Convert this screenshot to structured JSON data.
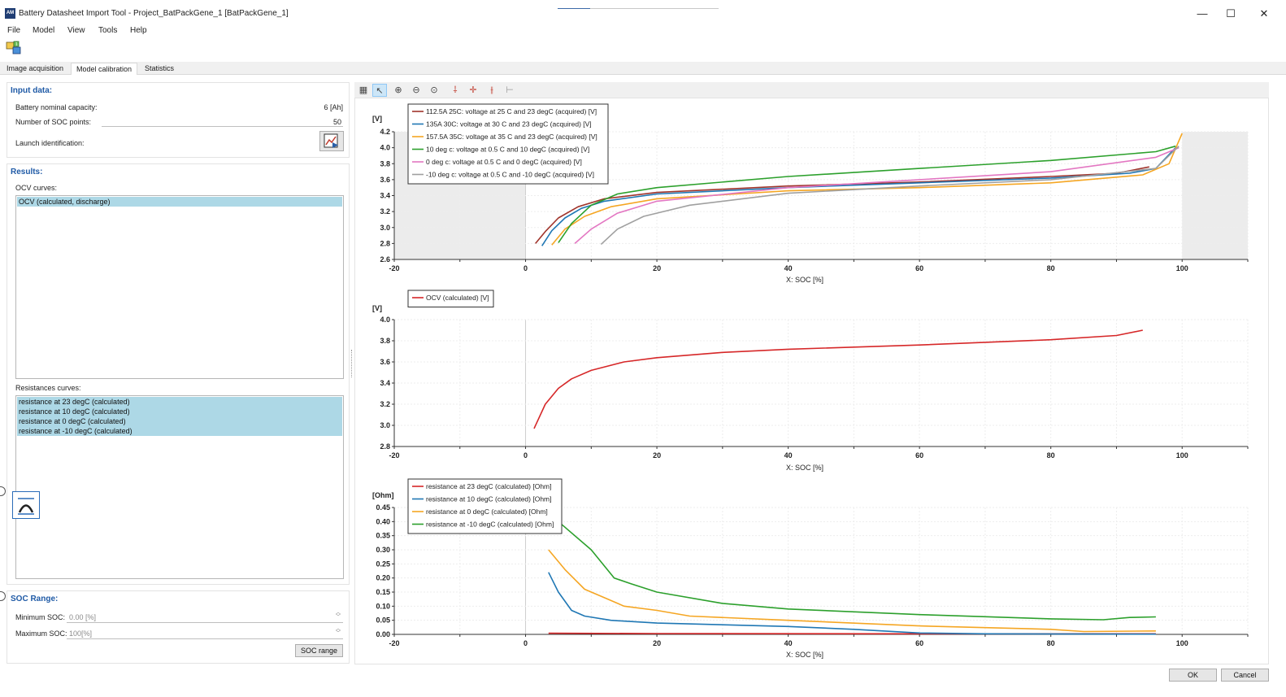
{
  "window": {
    "title": "Battery Datasheet Import Tool - Project_BatPackGene_1 [BatPackGene_1]",
    "app_icon_text": "AM",
    "minimize": "—",
    "maximize": "☐",
    "close": "✕"
  },
  "menu": [
    "File",
    "Model",
    "View",
    "Tools",
    "Help"
  ],
  "tabs": [
    "Image acquisition",
    "Model calibration",
    "Statistics"
  ],
  "active_tab": "Model calibration",
  "input_data": {
    "title": "Input data:",
    "capacity_label": "Battery nominal capacity:",
    "capacity_value": "6 [Ah]",
    "soc_points_label": "Number of SOC points:",
    "soc_points_value": "50",
    "launch_label": "Launch identification:"
  },
  "results": {
    "title": "Results:",
    "ocv_label": "OCV curves:",
    "ocv_items": [
      "OCV (calculated, discharge)"
    ],
    "res_label": "Resistances curves:",
    "res_items": [
      "resistance at 23 degC (calculated)",
      "resistance at 10 degC (calculated)",
      "resistance at 0 degC (calculated)",
      "resistance at -10 degC (calculated)"
    ]
  },
  "soc_range": {
    "title": "SOC Range:",
    "min_label": "Minimum SOC:",
    "min_value": "0.00 [%]",
    "max_label": "Maximum SOC:",
    "max_value": "100[%]",
    "button": "SOC range"
  },
  "buttons": {
    "ok": "OK",
    "cancel": "Cancel"
  },
  "colors": {
    "red": "#d62728",
    "blue": "#1f77b4",
    "orange": "#f5a623",
    "green": "#2ca02c",
    "pink": "#e377c2",
    "gray": "#a0a0a0",
    "selection": "#add8e6",
    "section_title": "#1f5aa6"
  },
  "icons": {
    "toolbar": [
      "table-icon",
      "pointer-icon",
      "zoom-in-icon",
      "zoom-out-icon",
      "zoom-reset-icon",
      "vertical-cursor-icon",
      "crosshair-icon",
      "double-cursor-icon",
      "marker-icon"
    ]
  },
  "chart_data": [
    {
      "type": "line",
      "ylabel": "[V]",
      "xlabel": "X: SOC [%]",
      "xlim": [
        -20,
        110
      ],
      "ylim": [
        2.6,
        4.2
      ],
      "xticks": [
        -20,
        0,
        20,
        40,
        60,
        80,
        100
      ],
      "yticks": [
        2.6,
        2.8,
        3.0,
        3.2,
        3.4,
        3.6,
        3.8,
        4.0,
        4.2
      ],
      "shaded_ranges": [
        [
          -20,
          0
        ],
        [
          100,
          110
        ]
      ],
      "grid": true,
      "legend_position": "top-left",
      "series": [
        {
          "name": "112.5A 25C: voltage at 25 C and 23 degC (acquired) [V]",
          "color": "#a0342b",
          "points": [
            [
              1.5,
              2.8
            ],
            [
              3,
              2.95
            ],
            [
              5,
              3.12
            ],
            [
              8,
              3.26
            ],
            [
              12,
              3.36
            ],
            [
              20,
              3.44
            ],
            [
              40,
              3.52
            ],
            [
              60,
              3.57
            ],
            [
              80,
              3.64
            ],
            [
              90,
              3.68
            ],
            [
              95,
              3.76
            ]
          ]
        },
        {
          "name": "135A 30C: voltage at 30 C and 23 degC (acquired) [V]",
          "color": "#1f77b4",
          "points": [
            [
              2.5,
              2.77
            ],
            [
              4,
              2.96
            ],
            [
              6,
              3.12
            ],
            [
              8.5,
              3.24
            ],
            [
              12,
              3.33
            ],
            [
              20,
              3.42
            ],
            [
              40,
              3.5
            ],
            [
              60,
              3.56
            ],
            [
              80,
              3.62
            ],
            [
              92,
              3.68
            ],
            [
              96,
              3.74
            ],
            [
              99,
              4.0
            ]
          ]
        },
        {
          "name": "157.5A 35C: voltage at 35 C and 23 degC (acquired) [V]",
          "color": "#f5a623",
          "points": [
            [
              4,
              2.78
            ],
            [
              6,
              2.98
            ],
            [
              9,
              3.14
            ],
            [
              13,
              3.26
            ],
            [
              20,
              3.36
            ],
            [
              40,
              3.46
            ],
            [
              60,
              3.5
            ],
            [
              80,
              3.56
            ],
            [
              94,
              3.66
            ],
            [
              98,
              3.8
            ],
            [
              100,
              4.18
            ]
          ]
        },
        {
          "name": "10 deg c: voltage at 0.5 C and 10 degC (acquired) [V]",
          "color": "#2ca02c",
          "points": [
            [
              5,
              2.81
            ],
            [
              7,
              3.05
            ],
            [
              10,
              3.28
            ],
            [
              14,
              3.42
            ],
            [
              20,
              3.5
            ],
            [
              40,
              3.64
            ],
            [
              60,
              3.74
            ],
            [
              80,
              3.84
            ],
            [
              96,
              3.95
            ],
            [
              99,
              4.02
            ]
          ]
        },
        {
          "name": "0 deg c: voltage at 0.5 C and 0 degC (acquired) [V]",
          "color": "#e377c2",
          "points": [
            [
              7.5,
              2.8
            ],
            [
              10,
              2.98
            ],
            [
              14,
              3.18
            ],
            [
              20,
              3.33
            ],
            [
              40,
              3.5
            ],
            [
              60,
              3.6
            ],
            [
              80,
              3.7
            ],
            [
              96,
              3.88
            ],
            [
              99.5,
              4.0
            ]
          ]
        },
        {
          "name": "-10 deg c: voltage at 0.5 C and -10 degC (acquired) [V]",
          "color": "#a0a0a0",
          "points": [
            [
              11.5,
              2.79
            ],
            [
              14,
              2.98
            ],
            [
              18,
              3.14
            ],
            [
              25,
              3.28
            ],
            [
              40,
              3.43
            ],
            [
              60,
              3.52
            ],
            [
              80,
              3.6
            ],
            [
              96,
              3.74
            ],
            [
              99.5,
              4.02
            ]
          ]
        }
      ]
    },
    {
      "type": "line",
      "ylabel": "[V]",
      "xlabel": "X: SOC [%]",
      "xlim": [
        -20,
        110
      ],
      "ylim": [
        2.8,
        4.0
      ],
      "xticks": [
        -20,
        0,
        20,
        40,
        60,
        80,
        100
      ],
      "yticks": [
        2.8,
        3.0,
        3.2,
        3.4,
        3.6,
        3.8,
        4.0
      ],
      "grid": true,
      "legend_position": "top-left",
      "series": [
        {
          "name": "OCV (calculated) [V]",
          "color": "#d62728",
          "points": [
            [
              1.3,
              2.97
            ],
            [
              3,
              3.2
            ],
            [
              5,
              3.35
            ],
            [
              7,
              3.44
            ],
            [
              10,
              3.52
            ],
            [
              15,
              3.6
            ],
            [
              20,
              3.64
            ],
            [
              30,
              3.69
            ],
            [
              40,
              3.72
            ],
            [
              60,
              3.76
            ],
            [
              80,
              3.81
            ],
            [
              90,
              3.85
            ],
            [
              94,
              3.9
            ]
          ]
        }
      ]
    },
    {
      "type": "line",
      "ylabel": "[Ohm]",
      "xlabel": "X: SOC [%]",
      "xlim": [
        -20,
        110
      ],
      "ylim": [
        0,
        0.45
      ],
      "xticks": [
        -20,
        0,
        20,
        40,
        60,
        80,
        100
      ],
      "yticks": [
        0,
        0.05,
        0.1,
        0.15,
        0.2,
        0.25,
        0.3,
        0.35,
        0.4,
        0.45
      ],
      "grid": true,
      "legend_position": "top-left",
      "series": [
        {
          "name": "resistance at 23 degC (calculated) [Ohm]",
          "color": "#d62728",
          "points": [
            [
              3.5,
              0.004
            ],
            [
              20,
              0.003
            ],
            [
              60,
              0.002
            ],
            [
              96,
              0.002
            ]
          ]
        },
        {
          "name": "resistance at 10 degC (calculated) [Ohm]",
          "color": "#1f77b4",
          "points": [
            [
              3.5,
              0.22
            ],
            [
              5,
              0.15
            ],
            [
              7,
              0.085
            ],
            [
              9,
              0.065
            ],
            [
              13,
              0.05
            ],
            [
              20,
              0.04
            ],
            [
              40,
              0.028
            ],
            [
              50,
              0.018
            ],
            [
              60,
              0.005
            ],
            [
              70,
              0.002
            ],
            [
              96,
              0.001
            ]
          ]
        },
        {
          "name": "resistance at 0 degC (calculated) [Ohm]",
          "color": "#f5a623",
          "points": [
            [
              3.5,
              0.3
            ],
            [
              6,
              0.23
            ],
            [
              9,
              0.16
            ],
            [
              12,
              0.13
            ],
            [
              15,
              0.1
            ],
            [
              20,
              0.085
            ],
            [
              25,
              0.065
            ],
            [
              40,
              0.05
            ],
            [
              60,
              0.03
            ],
            [
              80,
              0.018
            ],
            [
              85,
              0.01
            ],
            [
              96,
              0.012
            ]
          ]
        },
        {
          "name": "resistance at -10 degC (calculated) [Ohm]",
          "color": "#2ca02c",
          "points": [
            [
              5,
              0.4
            ],
            [
              10,
              0.3
            ],
            [
              13.5,
              0.2
            ],
            [
              16,
              0.18
            ],
            [
              20,
              0.15
            ],
            [
              30,
              0.11
            ],
            [
              40,
              0.09
            ],
            [
              60,
              0.07
            ],
            [
              80,
              0.055
            ],
            [
              88,
              0.052
            ],
            [
              92,
              0.06
            ],
            [
              96,
              0.062
            ]
          ]
        }
      ]
    }
  ]
}
